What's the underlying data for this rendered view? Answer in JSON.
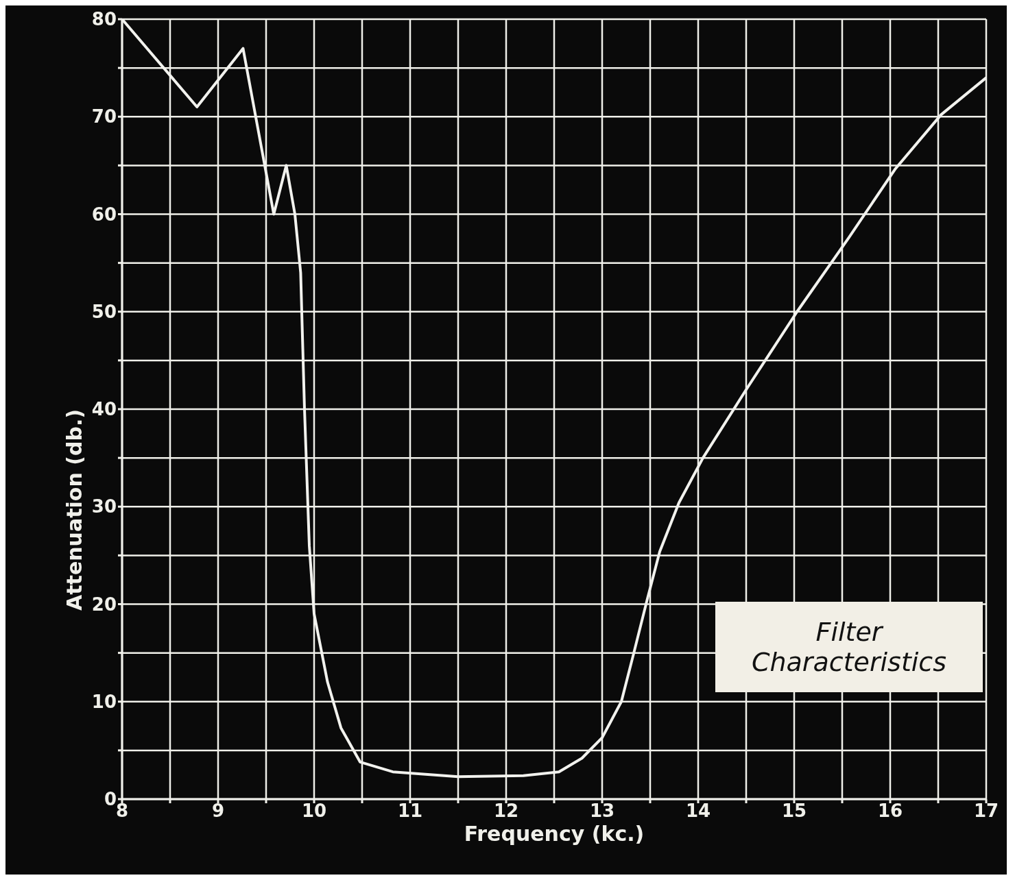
{
  "chart_data": {
    "type": "line",
    "title": "Filter Characteristics",
    "xlabel": "Frequency (kc.)",
    "ylabel": "Attenuation (db.)",
    "x": [
      8,
      8.78,
      9.26,
      9.58,
      9.71,
      9.8,
      9.86,
      9.9,
      9.95,
      10.0,
      10.14,
      10.28,
      10.48,
      10.82,
      11.5,
      12.18,
      12.55,
      12.79,
      13.0,
      13.2,
      13.33,
      13.47,
      13.6,
      13.8,
      14.05,
      14.5,
      15.03,
      15.57,
      16.05,
      16.53,
      17
    ],
    "series": [
      {
        "color": "#f2f2ee",
        "values": [
          80,
          71,
          77,
          60,
          65,
          60,
          54,
          40,
          26,
          19,
          12,
          7.3,
          3.8,
          2.8,
          2.3,
          2.4,
          2.8,
          4.2,
          6.3,
          10,
          15,
          20.5,
          25.4,
          30.4,
          35,
          42,
          50,
          57.6,
          64.6,
          70.2,
          74
        ]
      }
    ],
    "xlim": [
      8,
      17
    ],
    "ylim": [
      0,
      80
    ],
    "xticks": [
      8,
      {
        "value": 8.5,
        "label": null
      },
      9,
      {
        "value": 9.5,
        "label": null
      },
      10,
      {
        "value": 10.5,
        "label": null
      },
      11,
      {
        "value": 11.5,
        "label": null
      },
      12,
      {
        "value": 12.5,
        "label": null
      },
      13,
      {
        "value": 13.5,
        "label": null
      },
      14,
      {
        "value": 14.5,
        "label": null
      },
      15,
      {
        "value": 15.5,
        "label": null
      },
      16,
      {
        "value": 16.5,
        "label": null
      },
      17
    ],
    "yticks": [
      0,
      {
        "value": 5,
        "label": null
      },
      10,
      {
        "value": 15,
        "label": null
      },
      20,
      {
        "value": 25,
        "label": null
      },
      30,
      {
        "value": 35,
        "label": null
      },
      40,
      {
        "value": 45,
        "label": null
      },
      50,
      {
        "value": 55,
        "label": null
      },
      60,
      {
        "value": 65,
        "label": null
      },
      70,
      {
        "value": 75,
        "label": null
      },
      80
    ],
    "grid": true,
    "marker": "none",
    "line_style": "solid"
  }
}
